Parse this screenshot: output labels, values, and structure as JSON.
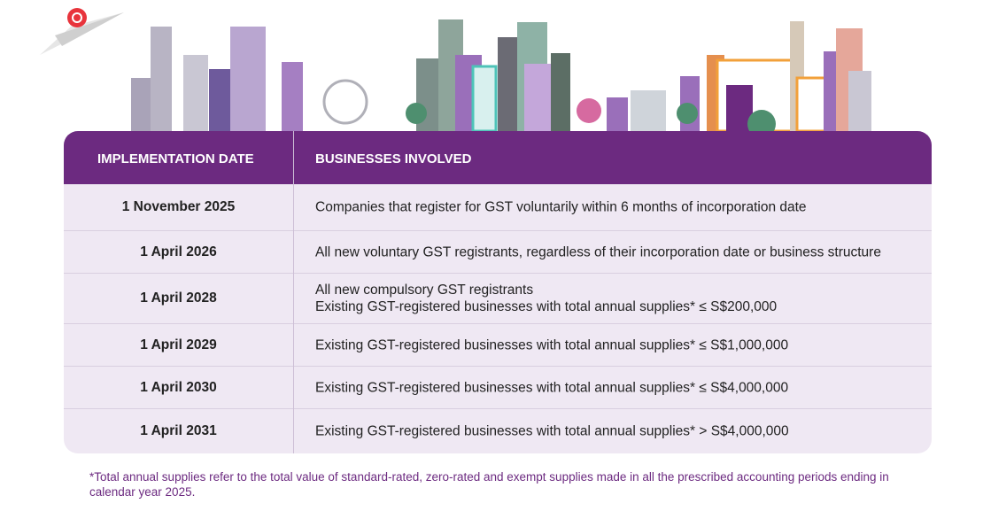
{
  "table": {
    "header": [
      "IMPLEMENTATION DATE",
      "BUSINESSES INVOLVED"
    ],
    "rows": [
      {
        "date": "1 November 2025",
        "businesses": [
          "Companies that register for GST voluntarily within 6 months of incorporation date"
        ]
      },
      {
        "date": "1 April 2026",
        "businesses": [
          "All new voluntary GST registrants, regardless of their incorporation date or business structure"
        ]
      },
      {
        "date": "1 April 2028",
        "businesses": [
          "All new compulsory GST registrants",
          "Existing GST-registered businesses with total annual supplies* ≤ S$200,000"
        ]
      },
      {
        "date": "1 April 2029",
        "businesses": [
          "Existing GST-registered businesses with total annual supplies* ≤ S$1,000,000"
        ]
      },
      {
        "date": "1 April 2030",
        "businesses": [
          "Existing GST-registered businesses with total annual supplies* ≤ S$4,000,000"
        ]
      },
      {
        "date": "1 April 2031",
        "businesses": [
          "Existing GST-registered businesses with total annual supplies* > S$4,000,000"
        ]
      }
    ]
  },
  "footnote": "*Total annual supplies refer to the total value of standard-rated, zero-rated and exempt supplies made in all the prescribed accounting periods ending in calendar year 2025."
}
